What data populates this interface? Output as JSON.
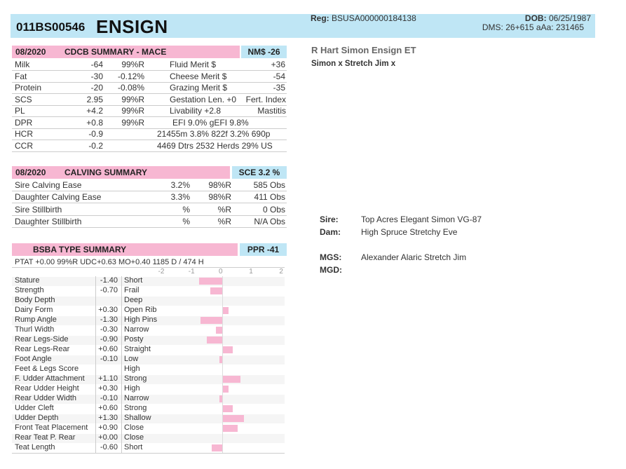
{
  "header": {
    "reg_number": "011BS00546",
    "name": "ENSIGN",
    "reg_label": "Reg:",
    "reg_value": "BSUSA000000184138",
    "dob_label": "DOB:",
    "dob_value": "06/25/1987",
    "dms": "DMS: 26+615  aAa: 231465"
  },
  "info": {
    "full_name": "R Hart Simon Ensign ET",
    "pedigree_short": "Simon x Stretch Jim x",
    "sire_label": "Sire:",
    "sire": "Top Acres Elegant Simon VG-87",
    "dam_label": "Dam:",
    "dam": "High Spruce Stretchy Eve",
    "mgs_label": "MGS:",
    "mgs": "Alexander Alaric Stretch Jim",
    "mgd_label": "MGD:",
    "mgd": ""
  },
  "cdcb": {
    "date": "08/2020",
    "title": "CDCB SUMMARY - MACE",
    "badge": "NM$ -26",
    "rows": [
      {
        "a": "Milk",
        "b": "-64",
        "c": "99%R",
        "d": "Fluid Merit $",
        "e": "+36"
      },
      {
        "a": "Fat",
        "b": "-30",
        "c": "-0.12%",
        "d": "Cheese Merit $",
        "e": "-54"
      },
      {
        "a": "Protein",
        "b": "-20",
        "c": "-0.08%",
        "d": "Grazing Merit $",
        "e": "-35"
      },
      {
        "a": "SCS",
        "b": "2.95",
        "c": "99%R",
        "d": "Gestation Len. +0",
        "e": "Fert. Index"
      },
      {
        "a": "PL",
        "b": "+4.2",
        "c": "99%R",
        "d": "Livability  +2.8",
        "e": "Mastitis"
      },
      {
        "a": "DPR",
        "b": "+0.8",
        "c": "99%R",
        "d": "EFI  9.0%  gEFI  9.8%",
        "e": ""
      },
      {
        "a": "HCR",
        "b": "-0.9",
        "c": "",
        "d": "21455m  3.8%  822f  3.2%  690p",
        "e": ""
      },
      {
        "a": "CCR",
        "b": "-0.2",
        "c": "",
        "d": "4469 Dtrs  2532 Herds  29% US",
        "e": ""
      }
    ]
  },
  "calving": {
    "date": "08/2020",
    "title": "CALVING SUMMARY",
    "badge": "SCE 3.2 %",
    "rows": [
      {
        "a": "Sire Calving Ease",
        "b": "3.2%",
        "c": "98%R",
        "d": "585 Obs"
      },
      {
        "a": "Daughter Calving Ease",
        "b": "3.3%",
        "c": "98%R",
        "d": "411 Obs"
      },
      {
        "a": "Sire Stillbirth",
        "b": "%",
        "c": "%R",
        "d": "0 Obs"
      },
      {
        "a": "Daughter Stillbirth",
        "b": "%",
        "c": "%R",
        "d": "N/A Obs"
      }
    ]
  },
  "type": {
    "title": "BSBA TYPE SUMMARY",
    "badge": "PPR -41",
    "ptat": "PTAT +0.00  99%R  UDC+0.63  MO+0.40   1185 D /  474 H",
    "scale": [
      "-2",
      "-1",
      "0",
      "1",
      "2"
    ],
    "traits": [
      {
        "name": "Stature",
        "value": "-1.40",
        "label": "Short",
        "v": -1.4
      },
      {
        "name": "Strength",
        "value": "-0.70",
        "label": "Frail",
        "v": -0.7
      },
      {
        "name": "Body Depth",
        "value": "",
        "label": "Deep",
        "v": 0
      },
      {
        "name": "Dairy Form",
        "value": "+0.30",
        "label": "Open Rib",
        "v": 0.3
      },
      {
        "name": "Rump Angle",
        "value": "-1.30",
        "label": "High Pins",
        "v": -1.3
      },
      {
        "name": "Thurl Width",
        "value": "-0.30",
        "label": "Narrow",
        "v": -0.3
      },
      {
        "name": "Rear Legs-Side",
        "value": "-0.90",
        "label": "Posty",
        "v": -0.9
      },
      {
        "name": "Rear Legs-Rear",
        "value": "+0.60",
        "label": "Straight",
        "v": 0.6
      },
      {
        "name": "Foot Angle",
        "value": "-0.10",
        "label": "Low",
        "v": -0.1
      },
      {
        "name": "Feet & Legs Score",
        "value": "",
        "label": "High",
        "v": 0
      },
      {
        "name": "F. Udder Attachment",
        "value": "+1.10",
        "label": "Strong",
        "v": 1.1
      },
      {
        "name": "Rear Udder Height",
        "value": "+0.30",
        "label": "High",
        "v": 0.3
      },
      {
        "name": "Rear Udder Width",
        "value": "-0.10",
        "label": "Narrow",
        "v": -0.1
      },
      {
        "name": "Udder Cleft",
        "value": "+0.60",
        "label": "Strong",
        "v": 0.6
      },
      {
        "name": "Udder Depth",
        "value": "+1.30",
        "label": "Shallow",
        "v": 1.3
      },
      {
        "name": "Front Teat Placement",
        "value": "+0.90",
        "label": "Close",
        "v": 0.9
      },
      {
        "name": "Rear Teat P. Rear",
        "value": "+0.00",
        "label": "Close",
        "v": 0
      },
      {
        "name": "Teat Length",
        "value": "-0.60",
        "label": "Short",
        "v": -0.6
      }
    ]
  },
  "colors": {
    "pink": "#f7b7d2",
    "blue": "#bfe6f5"
  }
}
